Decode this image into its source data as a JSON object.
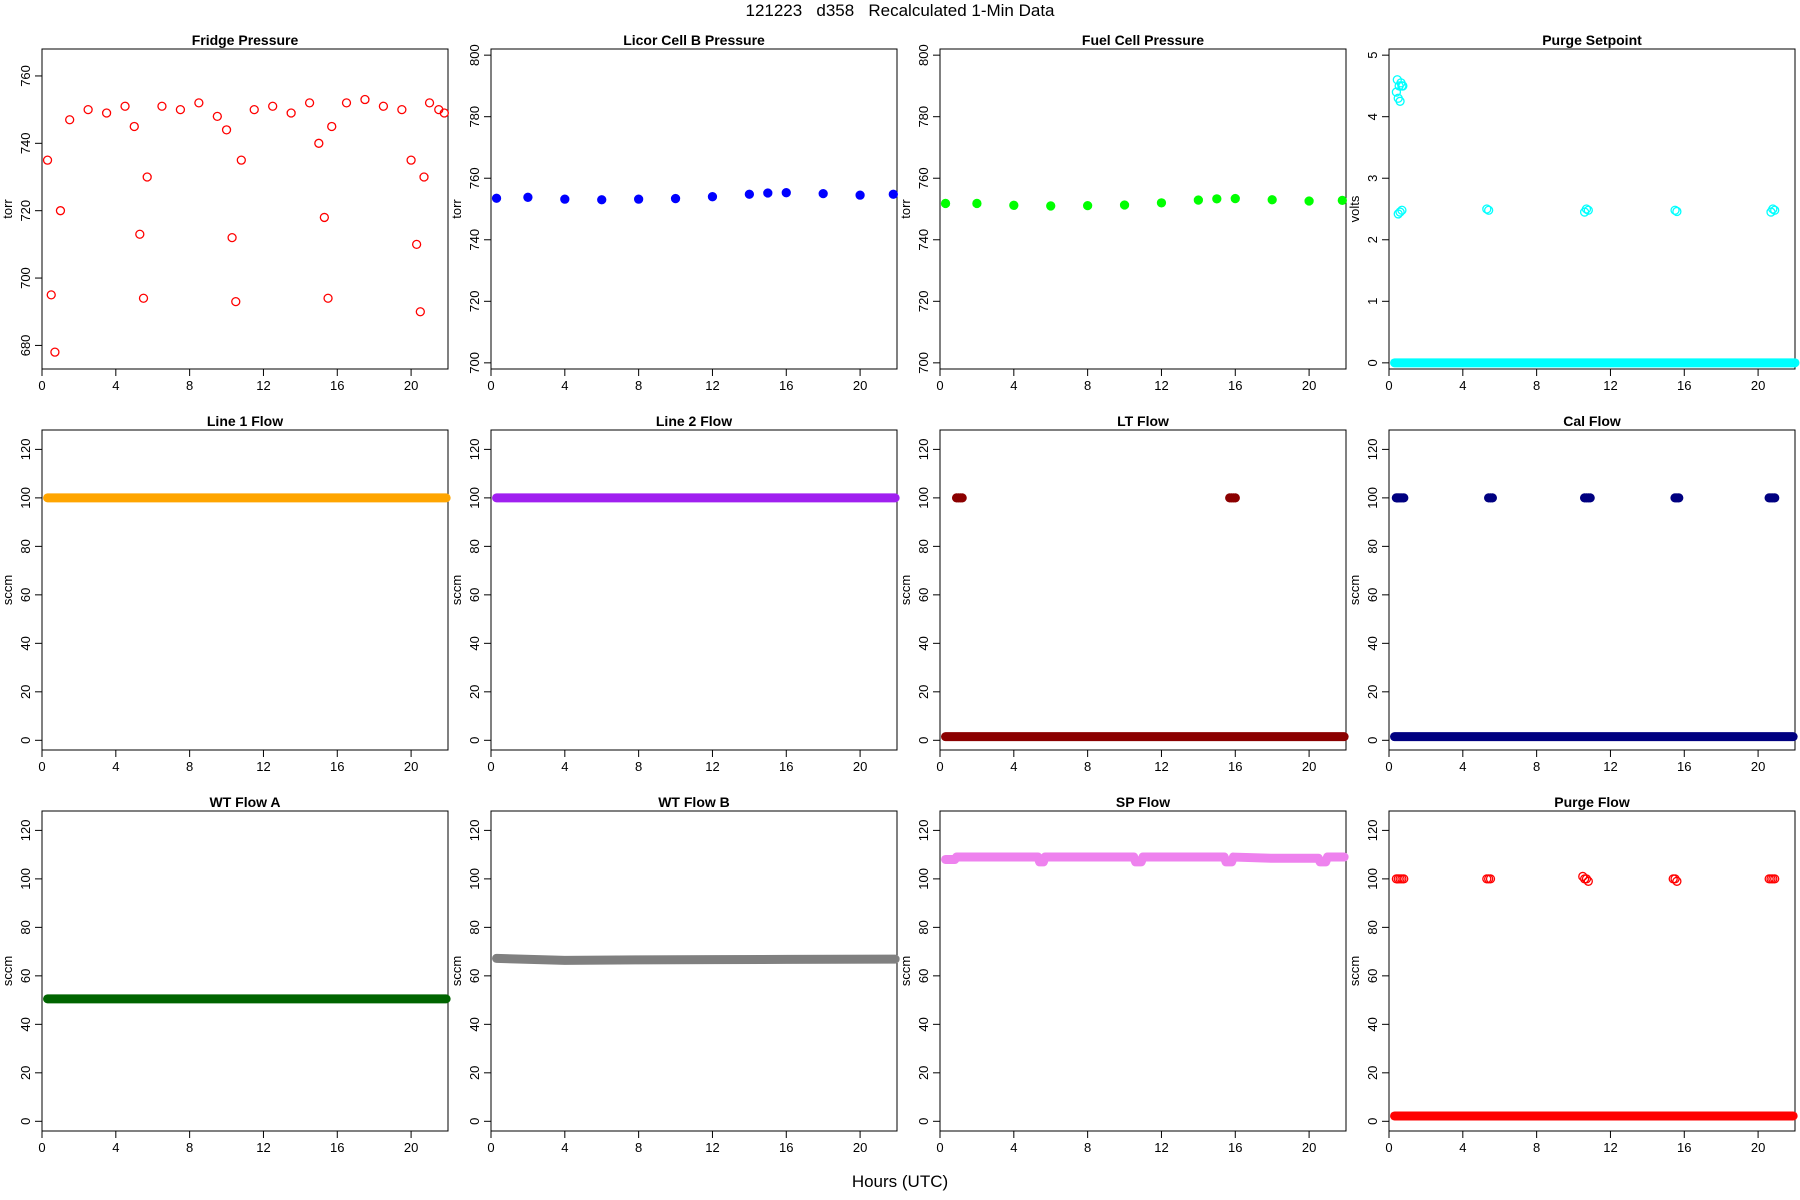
{
  "page": {
    "title": "121223   d358   Recalculated 1-Min Data",
    "xlabel": "Hours (UTC)"
  },
  "chart_data": [
    {
      "type": "scatter",
      "title": "Fridge Pressure",
      "ylabel": "torr",
      "xlim": [
        0,
        22
      ],
      "ylim": [
        673,
        768
      ],
      "xticks": [
        0,
        4,
        8,
        12,
        16,
        20
      ],
      "yticks": [
        680,
        700,
        720,
        740,
        760
      ],
      "marker": "open",
      "color": "#ff0000",
      "series": [
        {
          "x": [
            0.3,
            0.5,
            0.7,
            1.0,
            1.5,
            2.5,
            3.5,
            4.5,
            5.0,
            5.3,
            5.5,
            5.7,
            6.5,
            7.5,
            8.5,
            9.5,
            10.0,
            10.3,
            10.5,
            10.8,
            11.5,
            12.5,
            13.5,
            14.5,
            15.0,
            15.3,
            15.5,
            15.7,
            16.5,
            17.5,
            18.5,
            19.5,
            20.0,
            20.3,
            20.5,
            20.7,
            21.0,
            21.5,
            21.8
          ],
          "y": [
            735,
            695,
            678,
            720,
            747,
            750,
            749,
            751,
            745,
            713,
            694,
            730,
            751,
            750,
            752,
            748,
            744,
            712,
            693,
            735,
            750,
            751,
            749,
            752,
            740,
            718,
            694,
            745,
            752,
            753,
            751,
            750,
            735,
            710,
            690,
            730,
            752,
            750,
            749
          ]
        }
      ]
    },
    {
      "type": "scatter",
      "title": "Licor Cell B Pressure",
      "ylabel": "torr",
      "xlim": [
        0,
        22
      ],
      "ylim": [
        698,
        802
      ],
      "xticks": [
        0,
        4,
        8,
        12,
        16,
        20
      ],
      "yticks": [
        700,
        720,
        740,
        760,
        780,
        800
      ],
      "marker": "filled",
      "color": "#0000ff",
      "series": [
        {
          "x": [
            0.3,
            2,
            4,
            6,
            8,
            10,
            12,
            14,
            15,
            16,
            18,
            20,
            21.8
          ],
          "y": [
            753.5,
            753.8,
            753.2,
            753.0,
            753.2,
            753.4,
            754.0,
            754.8,
            755.2,
            755.3,
            755.0,
            754.5,
            754.8
          ]
        }
      ]
    },
    {
      "type": "scatter",
      "title": "Fuel Cell Pressure",
      "ylabel": "torr",
      "xlim": [
        0,
        22
      ],
      "ylim": [
        698,
        802
      ],
      "xticks": [
        0,
        4,
        8,
        12,
        16,
        20
      ],
      "yticks": [
        700,
        720,
        740,
        760,
        780,
        800
      ],
      "marker": "filled",
      "color": "#00ff00",
      "series": [
        {
          "x": [
            0.3,
            2,
            4,
            6,
            8,
            10,
            12,
            14,
            15,
            16,
            18,
            20,
            21.8
          ],
          "y": [
            751.8,
            751.8,
            751.2,
            751.0,
            751.1,
            751.3,
            752.0,
            752.9,
            753.3,
            753.4,
            753.0,
            752.6,
            752.8
          ]
        }
      ]
    },
    {
      "type": "scatter",
      "title": "Purge Setpoint",
      "ylabel": "volts",
      "xlim": [
        0,
        22
      ],
      "ylim": [
        -0.1,
        5.1
      ],
      "xticks": [
        0,
        4,
        8,
        12,
        16,
        20
      ],
      "yticks": [
        0,
        1,
        2,
        3,
        4,
        5
      ],
      "marker": "open",
      "color": "#00ffff",
      "series": [
        {
          "x": [
            0.4,
            0.45,
            0.5,
            0.55,
            0.6,
            0.65,
            0.7,
            0.75,
            0.5,
            0.6,
            0.7,
            5.3,
            5.4,
            10.6,
            10.7,
            10.8,
            15.5,
            15.6,
            20.7,
            20.8,
            20.9
          ],
          "y": [
            4.4,
            4.6,
            4.3,
            4.5,
            4.25,
            4.55,
            4.5,
            4.5,
            2.42,
            2.45,
            2.48,
            2.5,
            2.48,
            2.45,
            2.5,
            2.48,
            2.48,
            2.46,
            2.45,
            2.5,
            2.48
          ]
        },
        {
          "x": [
            0.3,
            22.0
          ],
          "y": [
            0.0,
            0.0
          ],
          "line": true
        }
      ]
    },
    {
      "type": "scatter",
      "title": "Line 1 Flow",
      "ylabel": "sccm",
      "xlim": [
        0,
        22
      ],
      "ylim": [
        -4,
        128
      ],
      "xticks": [
        0,
        4,
        8,
        12,
        16,
        20
      ],
      "yticks": [
        0,
        20,
        40,
        60,
        80,
        100,
        120
      ],
      "marker": "filled",
      "color": "#ffa500",
      "series": [
        {
          "x": [
            0.3,
            21.9
          ],
          "y": [
            100,
            100
          ],
          "line": true
        }
      ]
    },
    {
      "type": "scatter",
      "title": "Line 2 Flow",
      "ylabel": "sccm",
      "xlim": [
        0,
        22
      ],
      "ylim": [
        -4,
        128
      ],
      "xticks": [
        0,
        4,
        8,
        12,
        16,
        20
      ],
      "yticks": [
        0,
        20,
        40,
        60,
        80,
        100,
        120
      ],
      "marker": "filled",
      "color": "#a020f0",
      "series": [
        {
          "x": [
            0.3,
            21.9
          ],
          "y": [
            100,
            100
          ],
          "line": true
        }
      ]
    },
    {
      "type": "scatter",
      "title": "LT Flow",
      "ylabel": "sccm",
      "xlim": [
        0,
        22
      ],
      "ylim": [
        -4,
        128
      ],
      "xticks": [
        0,
        4,
        8,
        12,
        16,
        20
      ],
      "yticks": [
        0,
        20,
        40,
        60,
        80,
        100,
        120
      ],
      "marker": "filled",
      "color": "#8b0000",
      "series": [
        {
          "x": [
            0.3,
            21.9
          ],
          "y": [
            1.5,
            1.5
          ],
          "line": true
        },
        {
          "x": [
            0.9,
            1.0,
            1.1,
            1.2,
            15.7,
            15.8,
            15.9,
            16.0
          ],
          "y": [
            100,
            100,
            100,
            100,
            100,
            100,
            100,
            100
          ]
        }
      ]
    },
    {
      "type": "scatter",
      "title": "Cal Flow",
      "ylabel": "sccm",
      "xlim": [
        0,
        22
      ],
      "ylim": [
        -4,
        128
      ],
      "xticks": [
        0,
        4,
        8,
        12,
        16,
        20
      ],
      "yticks": [
        0,
        20,
        40,
        60,
        80,
        100,
        120
      ],
      "marker": "filled",
      "color": "#000080",
      "series": [
        {
          "x": [
            0.3,
            21.9
          ],
          "y": [
            1.5,
            1.5
          ],
          "line": true
        },
        {
          "x": [
            0.4,
            0.5,
            0.6,
            0.7,
            0.8,
            5.4,
            5.5,
            5.6,
            10.6,
            10.7,
            10.8,
            10.9,
            15.5,
            15.6,
            15.7,
            20.6,
            20.7,
            20.8,
            20.9
          ],
          "y": [
            100,
            100,
            100,
            100,
            100,
            100,
            100,
            100,
            100,
            100,
            100,
            100,
            100,
            100,
            100,
            100,
            100,
            100,
            100
          ]
        }
      ]
    },
    {
      "type": "scatter",
      "title": "WT Flow A",
      "ylabel": "sccm",
      "xlim": [
        0,
        22
      ],
      "ylim": [
        -4,
        128
      ],
      "xticks": [
        0,
        4,
        8,
        12,
        16,
        20
      ],
      "yticks": [
        0,
        20,
        40,
        60,
        80,
        100,
        120
      ],
      "marker": "filled",
      "color": "#006400",
      "series": [
        {
          "x": [
            0.3,
            21.9
          ],
          "y": [
            50.5,
            50.5
          ],
          "line": true
        }
      ]
    },
    {
      "type": "scatter",
      "title": "WT Flow B",
      "ylabel": "sccm",
      "xlim": [
        0,
        22
      ],
      "ylim": [
        -4,
        128
      ],
      "xticks": [
        0,
        4,
        8,
        12,
        16,
        20
      ],
      "yticks": [
        0,
        20,
        40,
        60,
        80,
        100,
        120
      ],
      "marker": "filled",
      "color": "#808080",
      "series": [
        {
          "x": [
            0.3,
            4,
            8,
            12,
            16,
            21.9
          ],
          "y": [
            67.2,
            66.4,
            66.6,
            66.7,
            66.8,
            66.9
          ],
          "line": true
        }
      ]
    },
    {
      "type": "scatter",
      "title": "SP Flow",
      "ylabel": "sccm",
      "xlim": [
        0,
        22
      ],
      "ylim": [
        -4,
        128
      ],
      "xticks": [
        0,
        4,
        8,
        12,
        16,
        20
      ],
      "yticks": [
        0,
        20,
        40,
        60,
        80,
        100,
        120
      ],
      "marker": "filled",
      "color": "#ee82ee",
      "series": [
        {
          "x": [
            0.3,
            0.8,
            0.9,
            5.3,
            5.4,
            5.6,
            5.7,
            10.5,
            10.6,
            10.9,
            11.0,
            15.4,
            15.5,
            15.8,
            15.9,
            18.0,
            20.5,
            20.6,
            20.9,
            21.0,
            21.9
          ],
          "y": [
            108,
            108,
            109,
            109,
            107,
            107,
            109,
            109,
            107,
            107,
            109,
            109,
            107,
            107,
            109,
            108.5,
            108.5,
            107,
            107,
            109,
            109
          ],
          "line": true
        }
      ]
    },
    {
      "type": "scatter",
      "title": "Purge Flow",
      "ylabel": "sccm",
      "xlim": [
        0,
        22
      ],
      "ylim": [
        -4,
        128
      ],
      "xticks": [
        0,
        4,
        8,
        12,
        16,
        20
      ],
      "yticks": [
        0,
        20,
        40,
        60,
        80,
        100,
        120
      ],
      "marker": "open",
      "color": "#ff0000",
      "series": [
        {
          "x": [
            0.3,
            21.9
          ],
          "y": [
            2.2,
            2.2
          ],
          "line": true
        },
        {
          "x": [
            0.4,
            0.5,
            0.6,
            0.7,
            0.8,
            5.3,
            5.4,
            5.5,
            10.5,
            10.6,
            10.7,
            10.8,
            15.4,
            15.5,
            15.6,
            20.6,
            20.7,
            20.8,
            20.9
          ],
          "y": [
            100,
            100,
            100,
            100,
            100,
            100,
            100,
            100,
            101,
            100,
            100,
            99,
            100,
            100,
            99,
            100,
            100,
            100,
            100
          ]
        }
      ]
    }
  ]
}
